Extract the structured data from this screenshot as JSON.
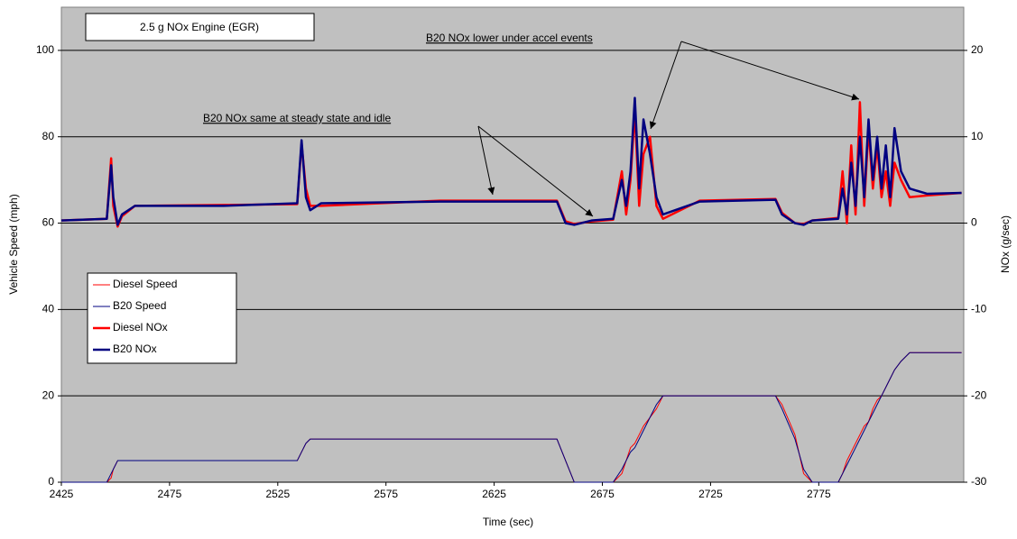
{
  "chart_data": {
    "type": "line",
    "x_label": "Time (sec)",
    "y_label": "Vehicle Speed (mph)",
    "y2_label": "NOx (g/sec)",
    "xlim": [
      2425,
      2842
    ],
    "xticks": [
      2425,
      2475,
      2525,
      2575,
      2625,
      2675,
      2725,
      2775
    ],
    "ylim": [
      0,
      110
    ],
    "yticks": [
      0,
      20,
      40,
      60,
      80,
      100
    ],
    "y2lim": [
      -30,
      25
    ],
    "y2ticks": [
      -30,
      -20,
      -10,
      0,
      10,
      20
    ],
    "grid": true,
    "annotations": [
      {
        "text": "2.5 g NOx Engine (EGR)"
      },
      {
        "text": "B20 NOx lower under accel events"
      },
      {
        "text": "B20 NOx same at steady state and idle"
      }
    ],
    "x": [
      2425,
      2446,
      2448,
      2449,
      2451,
      2453,
      2459,
      2500,
      2534,
      2536,
      2538,
      2540,
      2545,
      2600,
      2654,
      2658,
      2662,
      2670,
      2680,
      2684,
      2686,
      2688,
      2690,
      2692,
      2694,
      2697,
      2700,
      2703,
      2720,
      2755,
      2758,
      2764,
      2768,
      2772,
      2784,
      2786,
      2788,
      2790,
      2792,
      2794,
      2796,
      2798,
      2800,
      2802,
      2804,
      2806,
      2808,
      2810,
      2813,
      2817,
      2825,
      2841
    ],
    "series": [
      {
        "name": "Diesel Speed",
        "color": "#ff0000",
        "values": [
          0,
          0,
          1,
          3,
          5,
          5,
          5,
          5,
          5,
          7,
          9,
          10,
          10,
          10,
          10,
          5,
          0,
          0,
          0,
          2,
          5,
          8,
          9,
          11,
          13,
          15,
          17,
          20,
          20,
          20,
          18,
          11,
          2,
          0,
          0,
          2,
          5,
          7,
          9,
          11,
          13,
          14,
          17,
          19,
          20,
          22,
          24,
          26,
          28,
          30,
          30,
          30
        ]
      },
      {
        "name": "B20 Speed",
        "color": "#000080",
        "values": [
          0,
          0,
          2,
          3,
          5,
          5,
          5,
          5,
          5,
          7,
          9,
          10,
          10,
          10,
          10,
          5,
          0,
          0,
          0,
          3,
          5,
          7,
          8,
          10,
          12,
          15,
          18,
          20,
          20,
          20,
          17,
          10,
          3,
          0,
          0,
          2,
          4,
          6,
          8,
          10,
          12,
          14,
          16,
          18,
          20,
          22,
          24,
          26,
          28,
          30,
          30,
          30
        ]
      },
      {
        "name": "Diesel NOx",
        "color": "#ff0000",
        "axis": "y2",
        "values": [
          0.3,
          0.5,
          7.5,
          2,
          -0.4,
          0.8,
          2,
          2.1,
          2.2,
          9.2,
          4,
          2,
          2,
          2.6,
          2.6,
          0.2,
          -0.1,
          0.2,
          0.4,
          6,
          1,
          5,
          13,
          2,
          8,
          10,
          2,
          0.5,
          2.6,
          2.8,
          1.2,
          0,
          -0.1,
          0.3,
          0.6,
          6,
          0,
          9,
          1,
          14,
          2,
          11,
          4,
          9,
          3,
          6,
          2,
          7,
          5,
          3,
          3.2,
          3.5
        ]
      },
      {
        "name": "B20 NOx",
        "color": "#000080",
        "axis": "y2",
        "values": [
          0.3,
          0.5,
          6.7,
          3,
          -0.2,
          1,
          2,
          2,
          2.3,
          9.6,
          3,
          1.5,
          2.3,
          2.5,
          2.5,
          0,
          -0.2,
          0.3,
          0.5,
          5,
          2,
          6,
          14.5,
          4,
          12,
          8,
          3,
          1,
          2.5,
          2.7,
          1,
          0,
          -0.2,
          0.3,
          0.5,
          4,
          1,
          7,
          2,
          10,
          3,
          12,
          5,
          10,
          4,
          9,
          3,
          11,
          6,
          4,
          3.4,
          3.5
        ]
      }
    ]
  }
}
